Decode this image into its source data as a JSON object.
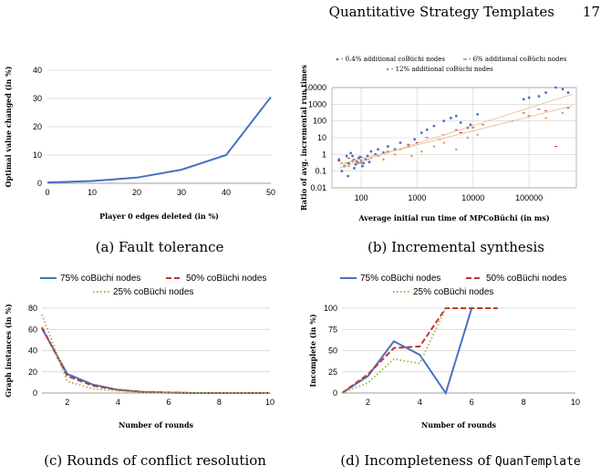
{
  "header": {
    "title": "Quantitative Strategy Templates",
    "page": "17"
  },
  "captions": {
    "a": "(a) Fault tolerance",
    "b": "(b) Incremental synthesis",
    "c": "(c) Rounds of conflict resolution",
    "d_prefix": "(d) Incompleteness of ",
    "d_code": "QuanTemplate"
  },
  "colors": {
    "blue": "#4472C4",
    "red": "#C0392B",
    "green": "#9BBB59",
    "orange": "#ED7D31",
    "grid": "#d0d0d0"
  },
  "chart_data": [
    {
      "id": "a",
      "type": "line",
      "xlabel": "Player 0 edges deleted (in %)",
      "ylabel": "Optimal value changed (in %)",
      "x": [
        0,
        10,
        20,
        30,
        40,
        50
      ],
      "xlim": [
        0,
        50
      ],
      "ylim": [
        0,
        40
      ],
      "xticks": [
        0,
        10,
        20,
        30,
        40,
        50
      ],
      "yticks": [
        0,
        10,
        20,
        30,
        40
      ],
      "grid": true,
      "series": [
        {
          "values": [
            0.3,
            0.8,
            2,
            4.8,
            10,
            30.5
          ]
        }
      ]
    },
    {
      "id": "b",
      "type": "scatter",
      "xlabel": "Average initial run time of MPCoBüchi (in ms)",
      "ylabel": "Ratio of avg. incremental run times",
      "xscale": "log",
      "yscale": "log",
      "xlim": [
        30,
        700000
      ],
      "ylim": [
        0.01,
        10000
      ],
      "xticks": [
        "100",
        "1000",
        "10000",
        "100000"
      ],
      "yticks": [
        "10000",
        "1000",
        "100",
        "10",
        "1",
        "0.1",
        "0.01"
      ],
      "grid": true,
      "series": [
        {
          "name": "0.4% additional coBüchi nodes",
          "marker": "dot",
          "points": [
            [
              40,
              0.5
            ],
            [
              50,
              0.2
            ],
            [
              55,
              0.8
            ],
            [
              60,
              0.3
            ],
            [
              70,
              0.4
            ],
            [
              80,
              0.25
            ],
            [
              90,
              0.6
            ],
            [
              100,
              0.4
            ],
            [
              110,
              0.3
            ],
            [
              120,
              0.5
            ],
            [
              65,
              1.2
            ],
            [
              75,
              0.15
            ],
            [
              85,
              0.35
            ],
            [
              95,
              0.7
            ],
            [
              130,
              0.8
            ],
            [
              150,
              1.5
            ],
            [
              180,
              1.0
            ],
            [
              200,
              2
            ],
            [
              250,
              1.3
            ],
            [
              300,
              3
            ],
            [
              400,
              2
            ],
            [
              500,
              5
            ],
            [
              700,
              3
            ],
            [
              900,
              8
            ],
            [
              1200,
              20
            ],
            [
              1500,
              30
            ],
            [
              2000,
              50
            ],
            [
              3000,
              100
            ],
            [
              4000,
              150
            ],
            [
              5000,
              200
            ],
            [
              6000,
              80
            ],
            [
              8000,
              40
            ],
            [
              9000,
              60
            ],
            [
              12000,
              250
            ],
            [
              80000,
              2000
            ],
            [
              100000,
              2500
            ],
            [
              150000,
              3000
            ],
            [
              200000,
              5000
            ],
            [
              300000,
              10000
            ],
            [
              400000,
              8000
            ],
            [
              500000,
              5000
            ],
            [
              45,
              0.1
            ],
            [
              58,
              0.05
            ],
            [
              70,
              0.8
            ],
            [
              105,
              0.2
            ],
            [
              140,
              0.35
            ]
          ]
        },
        {
          "name": "6% additional coBüchi nodes",
          "marker": "dash",
          "points": [
            [
              40,
              0.4
            ],
            [
              55,
              0.3
            ],
            [
              60,
              0.6
            ],
            [
              75,
              0.5
            ],
            [
              90,
              0.3
            ],
            [
              100,
              0.7
            ],
            [
              130,
              0.5
            ],
            [
              200,
              0.8
            ],
            [
              300,
              1.5
            ],
            [
              500,
              2
            ],
            [
              700,
              4
            ],
            [
              1000,
              5
            ],
            [
              1500,
              10
            ],
            [
              2500,
              8
            ],
            [
              3000,
              15
            ],
            [
              5000,
              30
            ],
            [
              6000,
              20
            ],
            [
              10000,
              40
            ],
            [
              15000,
              60
            ],
            [
              80000,
              300
            ],
            [
              100000,
              200
            ],
            [
              150000,
              500
            ],
            [
              200000,
              400
            ],
            [
              300000,
              3
            ],
            [
              500000,
              600
            ]
          ]
        },
        {
          "name": "12% additional coBüchi nodes",
          "marker": "dot",
          "points": [
            [
              45,
              0.3
            ],
            [
              60,
              0.2
            ],
            [
              80,
              0.4
            ],
            [
              100,
              0.3
            ],
            [
              150,
              0.6
            ],
            [
              250,
              0.5
            ],
            [
              400,
              1
            ],
            [
              800,
              0.8
            ],
            [
              1200,
              1.5
            ],
            [
              2000,
              3
            ],
            [
              3000,
              5
            ],
            [
              5000,
              2
            ],
            [
              8000,
              10
            ],
            [
              12000,
              15
            ],
            [
              50000,
              100
            ],
            [
              100000,
              200
            ],
            [
              200000,
              150
            ],
            [
              400000,
              300
            ]
          ]
        }
      ]
    },
    {
      "id": "c",
      "type": "line",
      "xlabel": "Number of rounds",
      "ylabel": "Graph instances (in %)",
      "x": [
        1,
        2,
        3,
        4,
        5,
        6,
        7,
        8,
        9,
        10
      ],
      "xlim": [
        1,
        10
      ],
      "ylim": [
        0,
        80
      ],
      "xticks": [
        2,
        4,
        6,
        8,
        10
      ],
      "yticks": [
        0,
        20,
        40,
        60,
        80
      ],
      "grid": true,
      "series": [
        {
          "name": "75% coBüchi nodes",
          "style": "solid",
          "values": [
            61,
            18,
            8,
            3,
            1,
            0.3,
            0,
            0,
            0,
            0
          ]
        },
        {
          "name": "50% coBüchi nodes",
          "style": "dashed",
          "values": [
            62,
            16,
            7,
            3,
            1,
            0.5,
            0,
            0,
            0,
            0
          ]
        },
        {
          "name": "25% coBüchi nodes",
          "style": "dotted",
          "values": [
            74,
            11,
            4,
            2,
            0.5,
            0.2,
            0,
            0,
            0,
            0
          ]
        }
      ]
    },
    {
      "id": "d",
      "type": "line",
      "xlabel": "Number of rounds",
      "ylabel": "Incomplete (in %)",
      "x": [
        1,
        2,
        3,
        4,
        5,
        6,
        7,
        8,
        9,
        10
      ],
      "xlim": [
        1,
        10
      ],
      "ylim": [
        0,
        100
      ],
      "xticks": [
        2,
        4,
        6,
        8,
        10
      ],
      "yticks": [
        0,
        25,
        50,
        75,
        100
      ],
      "grid": true,
      "series": [
        {
          "name": "75% coBüchi nodes",
          "style": "solid",
          "values": [
            0,
            20,
            61,
            45,
            0,
            100,
            null,
            null,
            null,
            null
          ]
        },
        {
          "name": "50% coBüchi nodes",
          "style": "dashed",
          "values": [
            0,
            22,
            53,
            55,
            100,
            100,
            100,
            null,
            null,
            null
          ]
        },
        {
          "name": "25% coBüchi nodes",
          "style": "dotted",
          "values": [
            0,
            12,
            40,
            35,
            100,
            null,
            null,
            null,
            null,
            null
          ]
        }
      ]
    }
  ]
}
